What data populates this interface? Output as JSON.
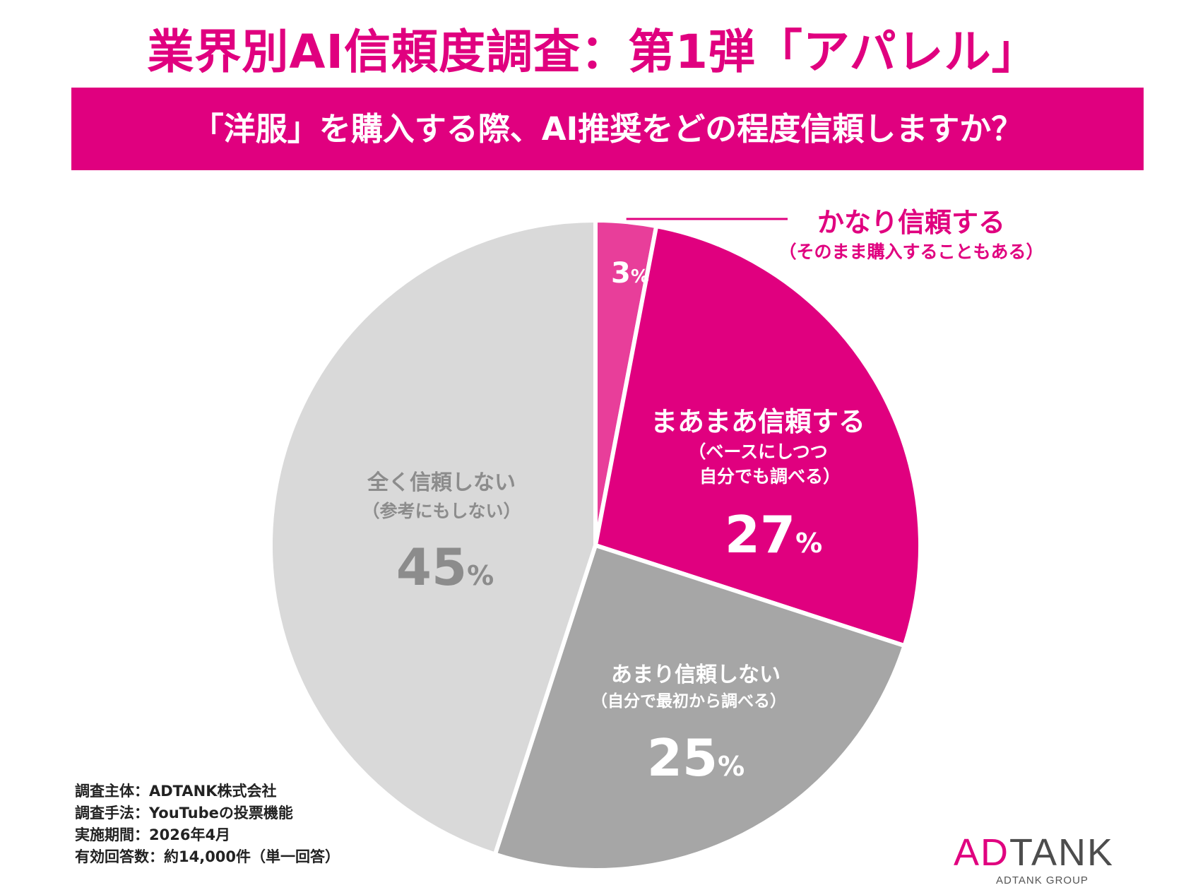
{
  "title": "業界別AI信頼度調査：第1弾「アパレル」",
  "question": "「洋服」を購入する際、AI推奨をどの程度信頼しますか？",
  "colors": {
    "accent": "#e0007f",
    "slice_1": "#e83e9a",
    "slice_2": "#e0007f",
    "slice_3": "#a6a6a6",
    "slice_4": "#d9d9d9"
  },
  "chart_data": {
    "type": "pie",
    "title": "「洋服」を購入する際、AI推奨をどの程度信頼しますか？",
    "unit": "%",
    "slices": [
      {
        "label": "かなり信頼する",
        "sublabel": "（そのまま購入することもある）",
        "value": 3
      },
      {
        "label": "まあまあ信頼する",
        "sublabel": "（ベースにしつつ",
        "sublabel2": "自分でも調べる）",
        "value": 27
      },
      {
        "label": "あまり信頼しない",
        "sublabel": "（自分で最初から調べる）",
        "value": 25
      },
      {
        "label": "全く信頼しない",
        "sublabel": "（参考にもしない）",
        "value": 45
      }
    ]
  },
  "footnotes": {
    "organizer": "調査主体：ADTANK株式会社",
    "method": "調査手法：YouTubeの投票機能",
    "period": "実施期間：2026年4月",
    "responses": "有効回答数：約14,000件（単一回答）"
  },
  "logo": {
    "ad": "AD",
    "tank": "TANK",
    "sub": "ADTANK GROUP"
  }
}
